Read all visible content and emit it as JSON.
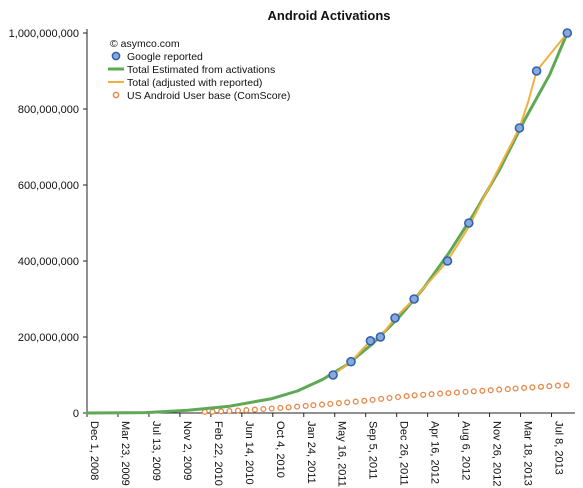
{
  "chart_data": {
    "type": "line",
    "title": "Android Activations",
    "annotation": "© asymco.com",
    "legend_position": "top-left",
    "grid": false,
    "ylim": [
      0,
      1000000000
    ],
    "xlim": [
      "2008-12-01",
      "2013-10-01"
    ],
    "y_ticks": [
      0,
      200000000,
      400000000,
      600000000,
      800000000,
      1000000000
    ],
    "y_tick_labels": [
      "0",
      "200,000,000",
      "400,000,000",
      "600,000,000",
      "800,000,000",
      "1,000,000,000"
    ],
    "x_ticks": [
      "2008-12-01",
      "2009-03-23",
      "2009-07-13",
      "2009-11-02",
      "2010-02-22",
      "2010-06-14",
      "2010-10-04",
      "2011-01-24",
      "2011-05-16",
      "2011-09-05",
      "2011-12-26",
      "2012-04-16",
      "2012-08-06",
      "2012-11-26",
      "2013-03-18",
      "2013-07-08"
    ],
    "x_tick_labels": [
      "Dec 1, 2008",
      "Mar 23, 2009",
      "Jul 13, 2009",
      "Nov 2, 2009",
      "Feb 22, 2010",
      "Jun 14, 2010",
      "Oct 4, 2010",
      "Jan 24, 2011",
      "May 16, 2011",
      "Sep 5, 2011",
      "Dec 26, 2011",
      "Apr 16, 2012",
      "Aug 6, 2012",
      "Nov 26, 2012",
      "Mar 18, 2013",
      "Jul 8, 2013"
    ],
    "series": [
      {
        "name": "Google reported",
        "style": "markers",
        "color": "#2f62b0",
        "points": [
          [
            "2011-05-10",
            100000000
          ],
          [
            "2011-07-14",
            135000000
          ],
          [
            "2011-09-22",
            190000000
          ],
          [
            "2011-10-28",
            200000000
          ],
          [
            "2011-12-20",
            250000000
          ],
          [
            "2012-02-27",
            300000000
          ],
          [
            "2012-06-27",
            400000000
          ],
          [
            "2012-09-12",
            500000000
          ],
          [
            "2013-03-14",
            750000000
          ],
          [
            "2013-05-15",
            900000000
          ],
          [
            "2013-09-03",
            1000000000
          ]
        ]
      },
      {
        "name": "Total Estimated from activations",
        "style": "line",
        "color": "#5fa855",
        "points": [
          [
            "2008-12-01",
            0
          ],
          [
            "2009-07-01",
            1000000
          ],
          [
            "2009-12-01",
            7000000
          ],
          [
            "2010-05-01",
            18000000
          ],
          [
            "2010-10-01",
            38000000
          ],
          [
            "2011-01-01",
            58000000
          ],
          [
            "2011-04-01",
            88000000
          ],
          [
            "2011-07-01",
            128000000
          ],
          [
            "2011-10-01",
            183000000
          ],
          [
            "2012-01-01",
            250000000
          ],
          [
            "2012-04-01",
            328000000
          ],
          [
            "2012-07-01",
            420000000
          ],
          [
            "2012-10-01",
            525000000
          ],
          [
            "2013-01-01",
            640000000
          ],
          [
            "2013-04-01",
            770000000
          ],
          [
            "2013-07-01",
            890000000
          ],
          [
            "2013-09-03",
            1000000000
          ]
        ]
      },
      {
        "name": "Total (adjusted with reported)",
        "style": "line",
        "color": "#f0b040",
        "points": [
          [
            "2011-05-10",
            100000000
          ],
          [
            "2011-07-14",
            135000000
          ],
          [
            "2011-09-22",
            190000000
          ],
          [
            "2011-10-28",
            200000000
          ],
          [
            "2011-12-20",
            250000000
          ],
          [
            "2012-02-27",
            300000000
          ],
          [
            "2012-06-27",
            400000000
          ],
          [
            "2012-09-12",
            490000000
          ],
          [
            "2013-03-14",
            750000000
          ],
          [
            "2013-04-15",
            820000000
          ],
          [
            "2013-05-15",
            900000000
          ],
          [
            "2013-09-03",
            1000000000
          ]
        ]
      },
      {
        "name": "US Android User base (ComScore)",
        "style": "markers",
        "color": "#e8884a",
        "points": [
          [
            "2010-01-31",
            2800000
          ],
          [
            "2010-02-28",
            3400000
          ],
          [
            "2010-03-31",
            4200000
          ],
          [
            "2010-04-30",
            5300000
          ],
          [
            "2010-05-31",
            6500000
          ],
          [
            "2010-06-30",
            7700000
          ],
          [
            "2010-07-31",
            9000000
          ],
          [
            "2010-08-31",
            10400000
          ],
          [
            "2010-09-30",
            11900000
          ],
          [
            "2010-10-31",
            13500000
          ],
          [
            "2010-11-30",
            15100000
          ],
          [
            "2010-12-31",
            16800000
          ],
          [
            "2011-01-31",
            18600000
          ],
          [
            "2011-02-28",
            20400000
          ],
          [
            "2011-03-31",
            22200000
          ],
          [
            "2011-04-30",
            24000000
          ],
          [
            "2011-05-31",
            26000000
          ],
          [
            "2011-06-30",
            28000000
          ],
          [
            "2011-07-31",
            30000000
          ],
          [
            "2011-08-31",
            32000000
          ],
          [
            "2011-09-30",
            34500000
          ],
          [
            "2011-10-31",
            37000000
          ],
          [
            "2011-11-30",
            39500000
          ],
          [
            "2011-12-31",
            42000000
          ],
          [
            "2012-01-31",
            44500000
          ],
          [
            "2012-02-29",
            46500000
          ],
          [
            "2012-03-31",
            48000000
          ],
          [
            "2012-04-30",
            49500000
          ],
          [
            "2012-05-31",
            51000000
          ],
          [
            "2012-06-30",
            52500000
          ],
          [
            "2012-07-31",
            54000000
          ],
          [
            "2012-08-31",
            55500000
          ],
          [
            "2012-09-30",
            57000000
          ],
          [
            "2012-10-31",
            58500000
          ],
          [
            "2012-11-30",
            60000000
          ],
          [
            "2012-12-31",
            61500000
          ],
          [
            "2013-01-31",
            63000000
          ],
          [
            "2013-02-28",
            64500000
          ],
          [
            "2013-03-31",
            66000000
          ],
          [
            "2013-04-30",
            67500000
          ],
          [
            "2013-05-31",
            69000000
          ],
          [
            "2013-06-30",
            70500000
          ],
          [
            "2013-07-31",
            72000000
          ],
          [
            "2013-08-31",
            73000000
          ]
        ]
      }
    ]
  }
}
